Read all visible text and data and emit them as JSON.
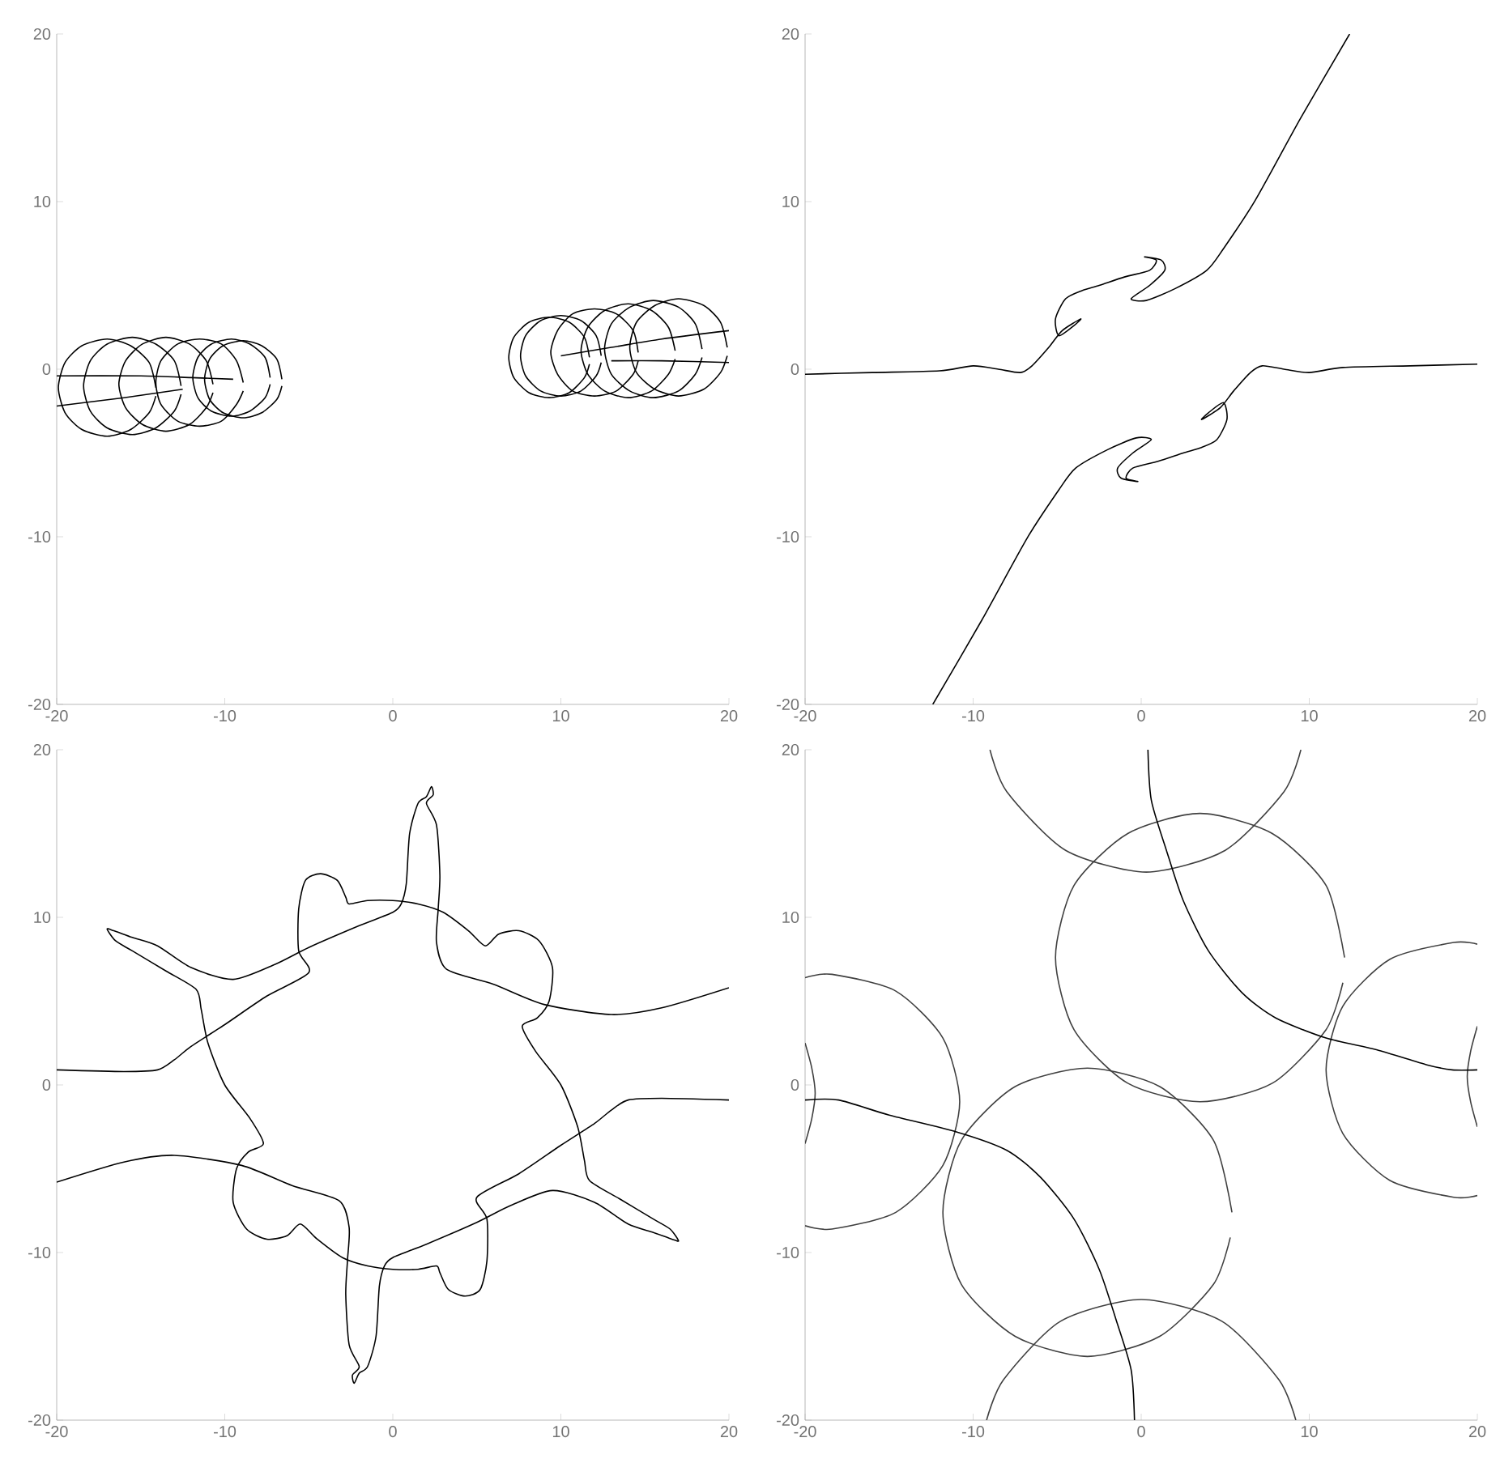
{
  "chart_data": [
    {
      "type": "line",
      "xlim": [
        -20,
        20
      ],
      "ylim": [
        -20,
        20
      ],
      "xticks": [
        -20,
        -10,
        0,
        10,
        20
      ],
      "yticks": [
        -20,
        -10,
        0,
        10,
        20
      ],
      "series": [
        {
          "color": "#000000",
          "x": [
            -6.6,
            -6.9,
            -7.8,
            -8.9,
            -10.1,
            -10.9,
            -11.2,
            -10.9,
            -10.1,
            -8.9,
            -7.8,
            -6.9,
            -6.6
          ],
          "values": [
            -0.6,
            0.6,
            1.4,
            1.7,
            1.4,
            0.6,
            -0.6,
            -1.8,
            -2.6,
            -2.9,
            -2.6,
            -1.8,
            -1.0
          ]
        },
        {
          "color": "#000000",
          "x": [
            -7.3,
            -7.6,
            -8.5,
            -9.6,
            -10.8,
            -11.6,
            -11.9,
            -11.6,
            -10.8,
            -9.6,
            -8.5,
            -7.6,
            -7.3
          ],
          "values": [
            -0.5,
            0.7,
            1.5,
            1.8,
            1.5,
            0.7,
            -0.5,
            -1.7,
            -2.5,
            -2.8,
            -2.5,
            -1.7,
            -0.9
          ]
        },
        {
          "color": "#000000",
          "x": [
            -8.9,
            -9.3,
            -10.2,
            -11.5,
            -12.8,
            -13.8,
            -14.1,
            -13.8,
            -12.8,
            -11.5,
            -10.2,
            -9.3,
            -8.9
          ],
          "values": [
            -0.8,
            0.5,
            1.5,
            1.8,
            1.5,
            0.5,
            -0.8,
            -2.1,
            -3.1,
            -3.4,
            -3.1,
            -2.1,
            -1.3
          ]
        },
        {
          "color": "#000000",
          "x": [
            -10.7,
            -11.1,
            -12.1,
            -13.5,
            -14.9,
            -15.9,
            -16.3,
            -15.9,
            -14.9,
            -13.5,
            -12.1,
            -11.1,
            -10.7
          ],
          "values": [
            -0.9,
            0.5,
            1.5,
            1.9,
            1.5,
            0.5,
            -0.9,
            -2.3,
            -3.3,
            -3.7,
            -3.3,
            -2.3,
            -1.4
          ]
        },
        {
          "color": "#000000",
          "x": [
            -12.6,
            -13,
            -14.1,
            -15.5,
            -17,
            -18,
            -18.4,
            -18,
            -17,
            -15.5,
            -14.1,
            -13,
            -12.6
          ],
          "values": [
            -1.0,
            0.5,
            1.5,
            1.9,
            1.5,
            0.5,
            -1.0,
            -2.5,
            -3.5,
            -3.9,
            -3.5,
            -2.5,
            -1.5
          ]
        },
        {
          "color": "#000000",
          "x": [
            -14.1,
            -14.5,
            -15.6,
            -17,
            -18.5,
            -19.5,
            -19.9,
            -19.5,
            -18.5,
            -17,
            -15.6,
            -14.5,
            -14.1
          ],
          "values": [
            -1.1,
            0.4,
            1.4,
            1.8,
            1.4,
            0.4,
            -1.1,
            -2.6,
            -3.6,
            -4.0,
            -3.6,
            -2.6,
            -1.6
          ]
        },
        {
          "color": "#000000",
          "x": [
            11.7,
            11.4,
            10.5,
            9.3,
            8.1,
            7.2,
            6.9,
            7.2,
            8.1,
            9.3,
            10.5,
            11.4,
            11.7
          ],
          "values": [
            0.7,
            1.9,
            2.8,
            3.1,
            2.8,
            1.9,
            0.7,
            -0.5,
            -1.4,
            -1.7,
            -1.4,
            -0.5,
            0.3
          ]
        },
        {
          "color": "#000000",
          "x": [
            12.4,
            12.1,
            11.2,
            10,
            8.8,
            7.9,
            7.6,
            7.9,
            8.8,
            10,
            11.2,
            12.1,
            12.4
          ],
          "values": [
            0.8,
            2.0,
            2.9,
            3.2,
            2.9,
            2.0,
            0.8,
            -0.4,
            -1.3,
            -1.6,
            -1.3,
            -0.4,
            0.4
          ]
        },
        {
          "color": "#000000",
          "x": [
            14.6,
            14.3,
            13.3,
            12,
            10.7,
            9.8,
            9.4,
            9.8,
            10.7,
            12,
            13.3,
            14.3,
            14.6
          ],
          "values": [
            1.0,
            2.3,
            3.3,
            3.6,
            3.3,
            2.3,
            1.0,
            -0.3,
            -1.3,
            -1.6,
            -1.3,
            -0.3,
            0.5
          ]
        },
        {
          "color": "#000000",
          "x": [
            16.8,
            16.4,
            15.4,
            14,
            12.6,
            11.6,
            11.2,
            11.6,
            12.6,
            14,
            15.4,
            16.4,
            16.8
          ],
          "values": [
            1.1,
            2.5,
            3.5,
            3.9,
            3.5,
            2.5,
            1.1,
            -0.3,
            -1.3,
            -1.7,
            -1.3,
            -0.3,
            0.6
          ]
        },
        {
          "color": "#000000",
          "x": [
            18.4,
            18,
            17,
            15.5,
            14.1,
            13,
            12.6,
            13,
            14.1,
            15.5,
            17,
            18,
            18.4
          ],
          "values": [
            1.2,
            2.7,
            3.7,
            4.1,
            3.7,
            2.7,
            1.2,
            -0.3,
            -1.3,
            -1.7,
            -1.3,
            -0.3,
            0.7
          ]
        },
        {
          "color": "#000000",
          "x": [
            19.9,
            19.5,
            18.5,
            17,
            15.6,
            14.5,
            14.1,
            14.5,
            15.6,
            17,
            18.5,
            19.5,
            19.9
          ],
          "values": [
            1.3,
            2.8,
            3.8,
            4.2,
            3.8,
            2.8,
            1.3,
            -0.2,
            -1.2,
            -1.6,
            -1.2,
            -0.2,
            0.8
          ]
        },
        {
          "color": "#000000",
          "x": [
            -20,
            -15,
            -12,
            -9.5
          ],
          "values": [
            -0.4,
            -0.4,
            -0.5,
            -0.6
          ]
        },
        {
          "color": "#000000",
          "x": [
            -20,
            -16,
            -12.5
          ],
          "values": [
            -2.2,
            -1.7,
            -1.2
          ]
        },
        {
          "color": "#000000",
          "x": [
            10,
            13,
            16,
            20
          ],
          "values": [
            0.8,
            1.3,
            1.8,
            2.3
          ]
        },
        {
          "color": "#000000",
          "x": [
            13,
            16,
            20
          ],
          "values": [
            0.5,
            0.5,
            0.4
          ]
        }
      ]
    },
    {
      "type": "line",
      "xlim": [
        -20,
        20
      ],
      "ylim": [
        -20,
        20
      ],
      "xticks": [
        -20,
        -10,
        0,
        10,
        20
      ],
      "yticks": [
        -20,
        -10,
        0,
        10,
        20
      ],
      "series": [
        {
          "color": "#000000",
          "x": [
            -20,
            -16,
            -12,
            -10,
            -8.5,
            -7.2,
            -6.5,
            -5.5,
            -4.7,
            -3.6,
            -4.0,
            -4.9,
            -5.1,
            -4.5,
            -3.5,
            -2.5,
            -1.0,
            0.5,
            0.9,
            0.2,
            1.2,
            1.4,
            0.5,
            -0.6,
            0.3,
            2,
            3.9,
            4.9,
            6.8,
            9.5,
            12.4
          ],
          "values": [
            -0.3,
            -0.2,
            -0.1,
            0.2,
            0.0,
            -0.2,
            0.2,
            1.3,
            2.3,
            3.0,
            2.6,
            2.0,
            3.0,
            4.2,
            4.7,
            5.0,
            5.5,
            5.9,
            6.5,
            6.7,
            6.5,
            5.9,
            5.0,
            4.2,
            4.1,
            4.8,
            5.9,
            7.2,
            10.1,
            15,
            20
          ]
        },
        {
          "color": "#000000",
          "x": [
            20,
            16,
            12,
            10,
            8.5,
            7.2,
            6.5,
            5.5,
            4.7,
            3.6,
            4.0,
            4.9,
            5.1,
            4.5,
            3.5,
            2.5,
            1.0,
            -0.5,
            -0.9,
            -0.2,
            -1.2,
            -1.4,
            -0.5,
            0.6,
            -0.3,
            -2,
            -3.9,
            -4.9,
            -6.8,
            -9.5,
            -12.4
          ],
          "values": [
            0.3,
            0.2,
            0.1,
            -0.2,
            0.0,
            0.2,
            -0.2,
            -1.3,
            -2.3,
            -3.0,
            -2.6,
            -2.0,
            -3.0,
            -4.2,
            -4.7,
            -5.0,
            -5.5,
            -5.9,
            -6.5,
            -6.7,
            -6.5,
            -5.9,
            -5.0,
            -4.2,
            -4.1,
            -4.8,
            -5.9,
            -7.2,
            -10.1,
            -15,
            -20
          ]
        }
      ]
    },
    {
      "type": "line",
      "xlim": [
        -20,
        20
      ],
      "ylim": [
        -20,
        20
      ],
      "xticks": [
        -20,
        -10,
        0,
        10,
        20
      ],
      "yticks": [
        -20,
        -10,
        0,
        10,
        20
      ],
      "series": [
        {
          "color": "#000000",
          "x": [
            -20,
            -16,
            -14,
            -13,
            -12,
            -10,
            -7.5,
            -5,
            -5.6,
            -5.6,
            -5.2,
            -4.3,
            -3.3,
            -2.8,
            -2.6,
            -1.5,
            0,
            1.5,
            3,
            4.5,
            5.5,
            6.3,
            7.5,
            8.7,
            9.5,
            9.3,
            8.6,
            7.7,
            8.5,
            10,
            11,
            11.4,
            11.7,
            13.5,
            15.5,
            16.5,
            17,
            16.6,
            15.5,
            14,
            12,
            9.5,
            7,
            5,
            2,
            0,
            -0.5,
            -0.8,
            -1,
            -1.5,
            -2,
            -2.3,
            -2.4,
            -2,
            -2.6,
            -2.8,
            -2.7,
            -2.6,
            -3.2,
            -6,
            -9,
            -13,
            -16,
            -20
          ],
          "values": [
            0.9,
            0.8,
            0.9,
            1.5,
            2.3,
            3.6,
            5.3,
            6.7,
            8,
            10.5,
            12.2,
            12.6,
            12.2,
            11.2,
            10.8,
            11,
            11,
            10.8,
            10.3,
            9.2,
            8.3,
            9,
            9.2,
            8.6,
            7,
            5,
            4,
            3.5,
            2,
            0,
            -2.5,
            -4.5,
            -5.7,
            -6.8,
            -8,
            -8.6,
            -9.3,
            -9.2,
            -8.8,
            -8.3,
            -7,
            -6.3,
            -7.2,
            -8.2,
            -9.5,
            -10.3,
            -10.8,
            -12,
            -15,
            -16.8,
            -17.2,
            -17.8,
            -17.3,
            -16.8,
            -15.5,
            -12.5,
            -10.5,
            -8.5,
            -6.9,
            -6,
            -4.8,
            -4.2,
            -4.6,
            -5.8
          ]
        },
        {
          "color": "#000000",
          "x": [
            20,
            16,
            14,
            13,
            12,
            10,
            7.5,
            5,
            5.6,
            5.6,
            5.2,
            4.3,
            3.3,
            2.8,
            2.6,
            1.5,
            0,
            -1.5,
            -3,
            -4.5,
            -5.5,
            -6.3,
            -7.5,
            -8.7,
            -9.5,
            -9.3,
            -8.6,
            -7.7,
            -8.5,
            -10,
            -11,
            -11.4,
            -11.7,
            -13.5,
            -15.5,
            -16.5,
            -17,
            -16.6,
            -15.5,
            -14,
            -12,
            -9.5,
            -7,
            -5,
            -2,
            0,
            0.5,
            0.8,
            1,
            1.5,
            2,
            2.3,
            2.4,
            2,
            2.6,
            2.8,
            2.7,
            2.6,
            3.2,
            6,
            9,
            13,
            16,
            20
          ],
          "values": [
            -0.9,
            -0.8,
            -0.9,
            -1.5,
            -2.3,
            -3.6,
            -5.3,
            -6.7,
            -8,
            -10.5,
            -12.2,
            -12.6,
            -12.2,
            -11.2,
            -10.8,
            -11,
            -11,
            -10.8,
            -10.3,
            -9.2,
            -8.3,
            -9,
            -9.2,
            -8.6,
            -7,
            -5,
            -4,
            -3.5,
            -2,
            0,
            2.5,
            4.5,
            5.7,
            6.8,
            8,
            8.6,
            9.3,
            9.2,
            8.8,
            8.3,
            7,
            6.3,
            7.2,
            8.2,
            9.5,
            10.3,
            10.8,
            12,
            15,
            16.8,
            17.2,
            17.8,
            17.3,
            16.8,
            15.5,
            12.5,
            10.5,
            8.5,
            6.9,
            6,
            4.8,
            4.2,
            4.6,
            5.8
          ]
        }
      ]
    },
    {
      "type": "line",
      "xlim": [
        -20,
        20
      ],
      "ylim": [
        -20,
        20
      ],
      "xticks": [
        -20,
        -10,
        0,
        10,
        20
      ],
      "yticks": [
        -20,
        -10,
        0,
        10,
        20
      ],
      "series": [
        {
          "color": "#404040",
          "x": [
            12.1,
            11,
            7.8,
            3.5,
            -0.8,
            -4,
            -5.1,
            -4,
            -0.8,
            3.5,
            7.8,
            11,
            12
          ],
          "values": [
            7.6,
            11.9,
            15,
            16.2,
            15,
            11.9,
            7.6,
            3.3,
            0.1,
            -1,
            0.1,
            3.3,
            6.1
          ]
        },
        {
          "color": "#404040",
          "x": [
            5.4,
            4.3,
            1.1,
            -3.2,
            -7.5,
            -10.7,
            -11.8,
            -10.7,
            -7.5,
            -3.2,
            1.1,
            4.3,
            5.3
          ],
          "values": [
            -7.6,
            -3.3,
            -0.1,
            1,
            -0.1,
            -3.3,
            -7.6,
            -11.9,
            -15,
            -16.2,
            -15,
            -11.9,
            -9.1
          ]
        },
        {
          "color": "#404040",
          "x": [
            -20,
            -18.4,
            -14.6,
            -11.8,
            -10.8,
            -11.8,
            -14.6,
            -18.4,
            -20
          ],
          "values": [
            6.4,
            6.6,
            5.6,
            2.8,
            -1,
            -4.8,
            -7.6,
            -8.6,
            -8.4
          ]
        },
        {
          "color": "#404040",
          "x": [
            20,
            18.6,
            14.8,
            12,
            11,
            12,
            14.8,
            18.6,
            20
          ],
          "values": [
            8.4,
            8.5,
            7.5,
            4.7,
            0.9,
            -2.9,
            -5.7,
            -6.7,
            -6.6
          ]
        },
        {
          "color": "#404040",
          "x": [
            -9,
            -8,
            -4.5,
            0.3,
            5,
            8.5,
            9.5
          ],
          "values": [
            20,
            17.5,
            14,
            12.7,
            14,
            17.5,
            20
          ]
        },
        {
          "color": "#404040",
          "x": [
            -9.2,
            -8.2,
            -4.8,
            0,
            4.8,
            8.2,
            9.2
          ],
          "values": [
            -20,
            -17.6,
            -14.1,
            -12.8,
            -14.1,
            -17.6,
            -20
          ]
        },
        {
          "color": "#404040",
          "x": [
            -20,
            -19.6,
            -19.4,
            -19.6,
            -20
          ],
          "values": [
            2.5,
            1,
            -0.5,
            -2,
            -3.5
          ]
        },
        {
          "color": "#404040",
          "x": [
            20,
            19.6,
            19.4,
            19.6,
            20
          ],
          "values": [
            3.5,
            2,
            0.5,
            -1,
            -2.5
          ]
        },
        {
          "color": "#000000",
          "x": [
            0.4,
            0.6,
            1.5,
            2.5,
            4,
            6,
            8,
            11,
            14,
            17,
            18.5,
            20
          ],
          "values": [
            20,
            17,
            14,
            11,
            8,
            5.5,
            4,
            2.8,
            2.1,
            1.2,
            0.9,
            0.9
          ]
        },
        {
          "color": "#000000",
          "x": [
            -20,
            -18,
            -15,
            -11,
            -8,
            -6,
            -4,
            -2.5,
            -1.5,
            -0.6,
            -0.4
          ],
          "values": [
            -0.9,
            -0.9,
            -1.8,
            -2.8,
            -3.9,
            -5.5,
            -8,
            -11,
            -14,
            -17,
            -20
          ]
        }
      ]
    }
  ]
}
